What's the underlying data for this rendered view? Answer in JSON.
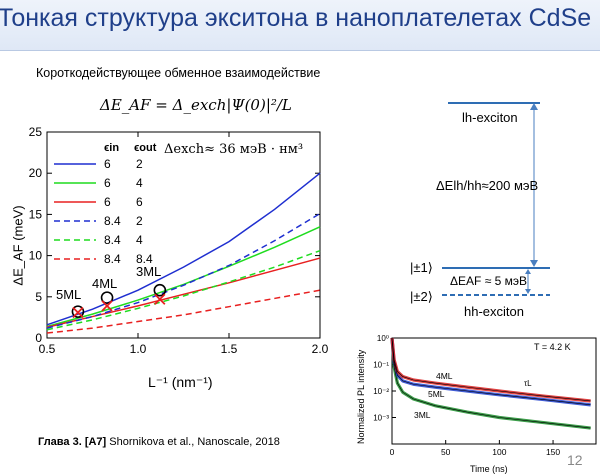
{
  "slide": {
    "title": "Тонкая структура экситона в наноплателетах CdSe",
    "subtitle": "Короткодействующее обменное взаимодействие",
    "formula": "ΔE_AF = Δ_exch|Ψ(0)|²/L",
    "page_number": "12",
    "footer": {
      "chapter": "Глава 3.",
      "ref": "[A7]",
      "citation": "Shornikova et al., Nanoscale, 2018"
    }
  },
  "main_chart": {
    "delta_exch_label": "Δexch≈ 36 мэВ · нм³",
    "legend_header_in": "ϵin",
    "legend_header_out": "ϵout",
    "thickness_labels": [
      "5ML",
      "4ML",
      "3ML"
    ],
    "ylabel": "ΔE_AF (meV)",
    "xlabel": "L⁻¹ (nm⁻¹)"
  },
  "level_diagram": {
    "lh_label": "lh-exciton",
    "gap_label": "ΔElh/hh≈200 мэВ",
    "state1": "|±1⟩",
    "state2": "|±2⟩",
    "af_label": "ΔEAF ≈ 5 мэВ",
    "hh_label": "hh-exciton"
  },
  "colors": {
    "blue": "#1f2fd0",
    "green": "#1fdc1f",
    "red": "#e82020",
    "title": "#1f3f8a",
    "diagram": "#2e6db4"
  },
  "chart_data": [
    {
      "type": "line",
      "xlabel": "L⁻¹ (nm⁻¹)",
      "ylabel": "ΔE_AF (meV)",
      "xlim": [
        0.5,
        2.0
      ],
      "ylim": [
        0,
        25
      ],
      "xticks": [
        "0.5",
        "1.0",
        "1.5",
        "2.0"
      ],
      "yticks": [
        "0",
        "5",
        "10",
        "15",
        "20",
        "25"
      ],
      "series": [
        {
          "eps_in": "6",
          "eps_out": "2",
          "color": "#1f2fd0",
          "dash": false,
          "x": [
            0.5,
            0.75,
            1.0,
            1.25,
            1.5,
            1.75,
            2.0
          ],
          "y": [
            1.6,
            3.5,
            5.8,
            8.6,
            11.7,
            15.6,
            20.0
          ]
        },
        {
          "eps_in": "6",
          "eps_out": "4",
          "color": "#1fdc1f",
          "dash": false,
          "x": [
            0.5,
            0.75,
            1.0,
            1.25,
            1.5,
            1.75,
            2.0
          ],
          "y": [
            1.4,
            2.9,
            4.6,
            6.5,
            8.7,
            11.0,
            13.5
          ]
        },
        {
          "eps_in": "6",
          "eps_out": "6",
          "color": "#e82020",
          "dash": false,
          "x": [
            0.5,
            0.75,
            1.0,
            1.25,
            1.5,
            1.75,
            2.0
          ],
          "y": [
            1.3,
            2.6,
            3.9,
            5.3,
            6.7,
            8.2,
            9.7
          ]
        },
        {
          "eps_in": "8.4",
          "eps_out": "2",
          "color": "#1f2fd0",
          "dash": true,
          "x": [
            0.5,
            0.75,
            1.0,
            1.25,
            1.5,
            1.75,
            2.0
          ],
          "y": [
            1.2,
            2.6,
            4.3,
            6.4,
            8.8,
            11.8,
            15.1
          ]
        },
        {
          "eps_in": "8.4",
          "eps_out": "4",
          "color": "#1fdc1f",
          "dash": true,
          "x": [
            0.5,
            0.75,
            1.0,
            1.25,
            1.5,
            1.75,
            2.0
          ],
          "y": [
            1.0,
            2.2,
            3.6,
            5.1,
            6.8,
            8.6,
            10.6
          ]
        },
        {
          "eps_in": "8.4",
          "eps_out": "8.4",
          "color": "#e82020",
          "dash": true,
          "x": [
            0.5,
            0.75,
            1.0,
            1.25,
            1.5,
            1.75,
            2.0
          ],
          "y": [
            0.6,
            1.2,
            2.0,
            2.8,
            3.8,
            4.8,
            5.8
          ]
        }
      ],
      "experiment_circles": [
        {
          "x": 0.67,
          "y": 3.2
        },
        {
          "x": 0.83,
          "y": 4.9
        },
        {
          "x": 1.12,
          "y": 5.8
        }
      ],
      "crosses": [
        {
          "x": 0.67,
          "y": 3.1
        },
        {
          "x": 0.83,
          "y": 3.9
        },
        {
          "x": 1.12,
          "y": 4.7
        }
      ]
    },
    {
      "type": "line",
      "xlabel": "Time (ns)",
      "ylabel": "Normalized PL intensity",
      "xlim": [
        0,
        190
      ],
      "ylim_log10": [
        -4,
        0
      ],
      "xticks": [
        "0",
        "50",
        "100",
        "150"
      ],
      "yticks": [
        "10⁰",
        "10⁻¹",
        "10⁻²",
        "10⁻³"
      ],
      "annotation_temperature": "T = 4.2 K",
      "annotation_tau": "τL",
      "series": [
        {
          "name": "4ML",
          "color": "#d92020",
          "x": [
            0,
            2,
            5,
            10,
            20,
            40,
            70,
            100,
            140,
            185
          ],
          "y": [
            1,
            0.15,
            0.055,
            0.035,
            0.026,
            0.02,
            0.014,
            0.01,
            0.0065,
            0.0042
          ]
        },
        {
          "name": "5ML",
          "color": "#1f3fcc",
          "x": [
            0,
            2,
            5,
            10,
            20,
            40,
            70,
            100,
            140,
            185
          ],
          "y": [
            1,
            0.12,
            0.04,
            0.024,
            0.018,
            0.014,
            0.01,
            0.0072,
            0.0048,
            0.003
          ]
        },
        {
          "name": "3ML",
          "color": "#1a8c2a",
          "x": [
            0,
            2,
            5,
            10,
            20,
            40,
            70,
            100,
            140,
            185
          ],
          "y": [
            1,
            0.08,
            0.02,
            0.009,
            0.005,
            0.0028,
            0.0016,
            0.001,
            0.00065,
            0.0004
          ]
        }
      ]
    }
  ]
}
